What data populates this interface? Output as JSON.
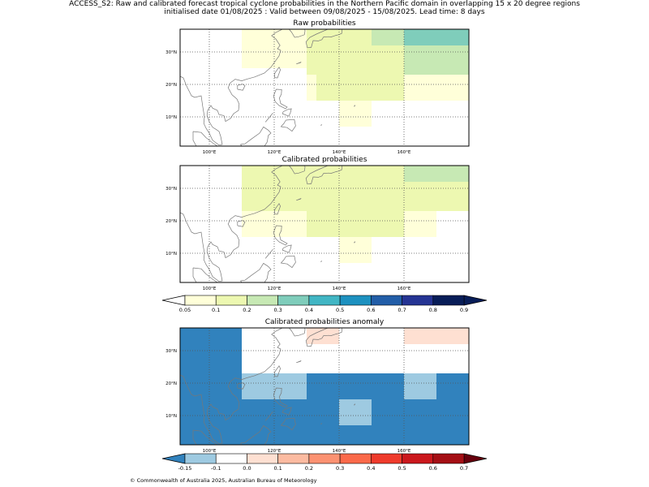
{
  "header": {
    "line1": "ACCESS_S2: Raw and calibrated forecast tropical cyclone probabilities in the Northern Pacific domain in overlapping 15 x 20 degree regions",
    "line2": "initialised date 01/08/2025 :  Valid between 09/08/2025 - 15/08/2025. Lead time: 8 days"
  },
  "panels": {
    "raw": {
      "title": "Raw probabilities"
    },
    "calibrated": {
      "title": "Calibrated probabilities"
    },
    "anomaly": {
      "title": "Calibrated probabilities anomaly"
    }
  },
  "axes": {
    "x_ticks": [
      {
        "value": 100,
        "label": "100°E"
      },
      {
        "value": 120,
        "label": "120°E"
      },
      {
        "value": 140,
        "label": "140°E"
      },
      {
        "value": 160,
        "label": "160°E"
      }
    ],
    "y_ticks": [
      {
        "value": 10,
        "label": "10°N"
      },
      {
        "value": 20,
        "label": "20°N"
      },
      {
        "value": 30,
        "label": "30°N"
      }
    ],
    "lon_range": [
      91,
      180
    ],
    "lat_range": [
      1,
      37
    ],
    "gridlines": true
  },
  "colorbar_prob": {
    "labels": [
      "0.05",
      "0.1",
      "0.2",
      "0.3",
      "0.4",
      "0.5",
      "0.6",
      "0.7",
      "0.8",
      "0.9"
    ],
    "colors": [
      "#ffffd9",
      "#edf8b1",
      "#c7e9b4",
      "#7fcdbb",
      "#41b6c4",
      "#1d91c0",
      "#225ea8",
      "#253494",
      "#081d58"
    ],
    "under_color": "#ffffff",
    "over_color": "#081d58"
  },
  "colorbar_anom": {
    "labels": [
      "-0.15",
      "-0.1",
      "0.0",
      "0.1",
      "0.2",
      "0.3",
      "0.4",
      "0.5",
      "0.6",
      "0.7"
    ],
    "colors": [
      "#9ecae1",
      "#ffffff",
      "#fee0d2",
      "#fcbba1",
      "#fc9272",
      "#fb6a4a",
      "#ef3b2c",
      "#cb181d",
      "#a50f15"
    ],
    "under_color": "#3182bd",
    "over_color": "#67000d"
  },
  "grid_cells": {
    "raw": [
      {
        "lon": [
          110,
          130
        ],
        "lat": [
          25,
          37
        ],
        "color": "#ffffd9"
      },
      {
        "lon": [
          130,
          150
        ],
        "lat": [
          15,
          37
        ],
        "color": "#edf8b1"
      },
      {
        "lon": [
          150,
          160
        ],
        "lat": [
          15,
          37
        ],
        "color": "#edf8b1"
      },
      {
        "lon": [
          150,
          160
        ],
        "lat": [
          32,
          37
        ],
        "color": "#c7e9b4"
      },
      {
        "lon": [
          160,
          180
        ],
        "lat": [
          32,
          37
        ],
        "color": "#7fcdbb"
      },
      {
        "lon": [
          160,
          180
        ],
        "lat": [
          23,
          32
        ],
        "color": "#c7e9b4"
      },
      {
        "lon": [
          160,
          180
        ],
        "lat": [
          15,
          23
        ],
        "color": "#ffffd9"
      },
      {
        "lon": [
          130,
          133
        ],
        "lat": [
          15,
          23
        ],
        "color": "#ffffd9"
      },
      {
        "lon": [
          140,
          150
        ],
        "lat": [
          7,
          15
        ],
        "color": "#ffffd9"
      }
    ],
    "calibrated": [
      {
        "lon": [
          110,
          160
        ],
        "lat": [
          23,
          37
        ],
        "color": "#edf8b1"
      },
      {
        "lon": [
          110,
          130
        ],
        "lat": [
          15,
          23
        ],
        "color": "#ffffd9"
      },
      {
        "lon": [
          130,
          160
        ],
        "lat": [
          15,
          23
        ],
        "color": "#edf8b1"
      },
      {
        "lon": [
          160,
          180
        ],
        "lat": [
          32,
          37
        ],
        "color": "#c7e9b4"
      },
      {
        "lon": [
          160,
          180
        ],
        "lat": [
          23,
          32
        ],
        "color": "#edf8b1"
      },
      {
        "lon": [
          160,
          170
        ],
        "lat": [
          15,
          23
        ],
        "color": "#ffffd9"
      },
      {
        "lon": [
          140,
          150
        ],
        "lat": [
          7,
          15
        ],
        "color": "#ffffd9"
      }
    ],
    "anomaly": [
      {
        "lon": [
          91,
          110
        ],
        "lat": [
          1,
          37
        ],
        "color": "#3182bd"
      },
      {
        "lon": [
          110,
          180
        ],
        "lat": [
          1,
          15
        ],
        "color": "#3182bd"
      },
      {
        "lon": [
          110,
          130
        ],
        "lat": [
          15,
          23
        ],
        "color": "#9ecae1"
      },
      {
        "lon": [
          130,
          160
        ],
        "lat": [
          15,
          23
        ],
        "color": "#3182bd"
      },
      {
        "lon": [
          140,
          150
        ],
        "lat": [
          7,
          15
        ],
        "color": "#9ecae1"
      },
      {
        "lon": [
          160,
          170
        ],
        "lat": [
          15,
          23
        ],
        "color": "#9ecae1"
      },
      {
        "lon": [
          170,
          180
        ],
        "lat": [
          15,
          23
        ],
        "color": "#3182bd"
      },
      {
        "lon": [
          130,
          140
        ],
        "lat": [
          32,
          37
        ],
        "color": "#fee0d2"
      },
      {
        "lon": [
          160,
          180
        ],
        "lat": [
          32,
          37
        ],
        "color": "#fee0d2"
      }
    ]
  },
  "footer": "© Commonwealth of Australia 2025, Australian Bureau of Meteorology"
}
